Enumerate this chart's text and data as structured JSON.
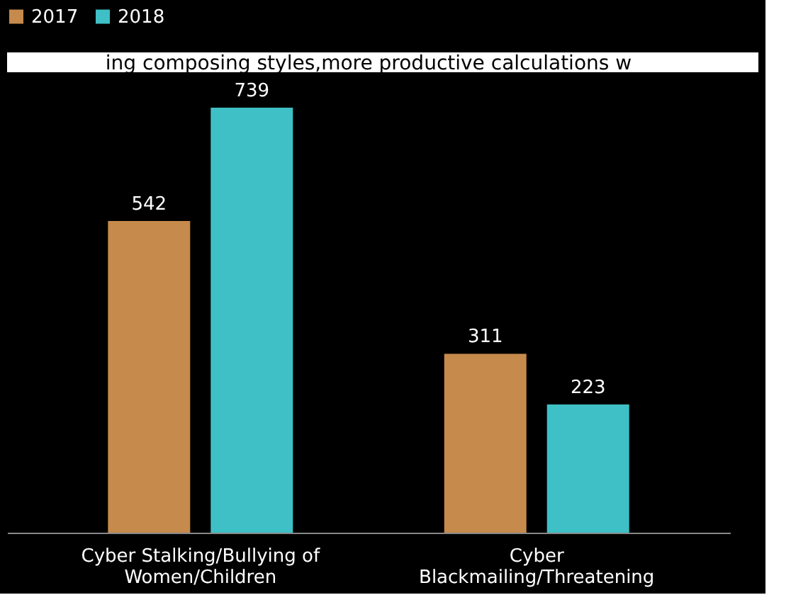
{
  "chart_data": {
    "type": "bar",
    "categories": [
      "Cyber Stalking/Bullying of Women/Children",
      "Cyber Blackmailing/Threatening"
    ],
    "series": [
      {
        "name": "2017",
        "color": "#c68a4c",
        "values": [
          542,
          311
        ]
      },
      {
        "name": "2018",
        "color": "#3ec0c6",
        "values": [
          739,
          223
        ]
      }
    ],
    "data_labels": true,
    "legend": "top",
    "grid": false,
    "annotations": [
      "ing composing styles,more productive calculations w"
    ]
  }
}
